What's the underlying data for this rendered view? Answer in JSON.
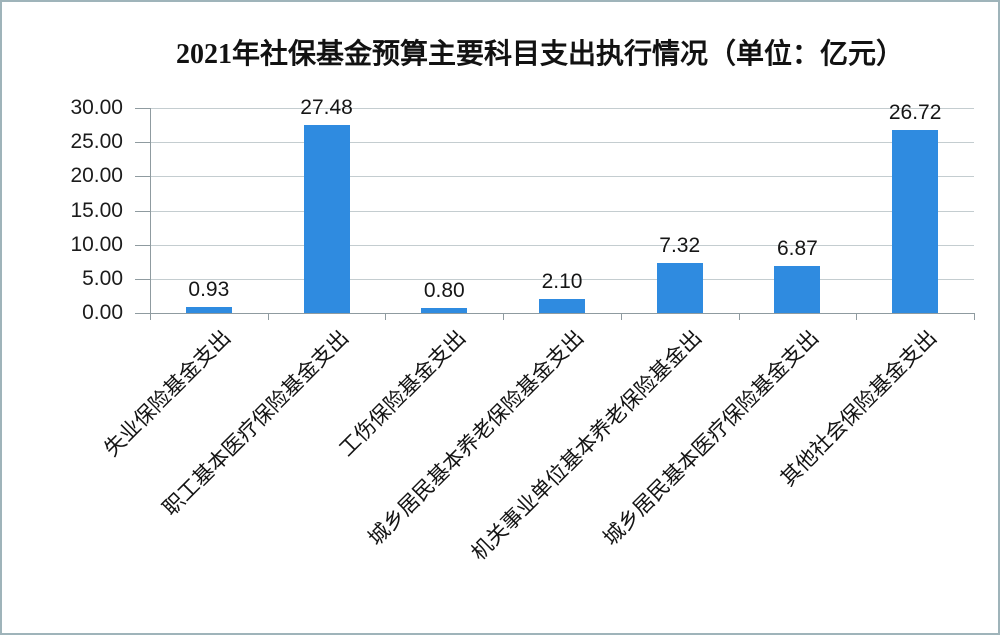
{
  "chart_data": {
    "type": "bar",
    "title": "2021年社保基金预算主要科目支出执行情况（单位：亿元）",
    "categories": [
      "失业保险基金支出",
      "职工基本医疗保险基金支出",
      "工伤保险基金支出",
      "城乡居民基本养老保险基金支出",
      "机关事业单位基本养老保险基金出",
      "城乡居民基本医疗保险基金支出",
      "其他社会保险基金支出"
    ],
    "values": [
      0.93,
      27.48,
      0.8,
      2.1,
      7.32,
      6.87,
      26.72
    ],
    "value_labels": [
      "0.93",
      "27.48",
      "0.80",
      "2.10",
      "7.32",
      "6.87",
      "26.72"
    ],
    "xlabel": "",
    "ylabel": "",
    "ylim": [
      0,
      30
    ],
    "ytick_step": 5,
    "yticks": [
      "0.00",
      "5.00",
      "10.00",
      "15.00",
      "20.00",
      "25.00",
      "30.00"
    ],
    "grid": true,
    "legend": "none",
    "colors": {
      "bar": "#2F8BE0",
      "grid": "#c4cdd0",
      "axis": "#8f9ba0",
      "text": "#1c1c1c",
      "frame_border": "#9fb4ba",
      "background": "#ffffff"
    }
  }
}
